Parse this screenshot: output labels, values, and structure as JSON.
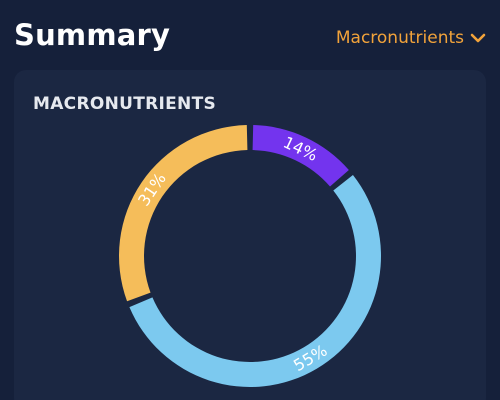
{
  "header": {
    "title": "Summary",
    "dropdown_label": "Macronutrients",
    "dropdown_icon": "chevron-down-icon"
  },
  "card": {
    "title": "MACRONUTRIENTS"
  },
  "colors": {
    "background": "#15203a",
    "card": "#1b2742",
    "accent": "#f2a33a"
  },
  "chart_data": {
    "type": "pie",
    "categories": [
      "",
      "",
      ""
    ],
    "values": [
      14,
      55,
      31
    ],
    "labels": [
      "14%",
      "55%",
      "31%"
    ],
    "colors": [
      "#7334ee",
      "#7cc9ef",
      "#f5bd5a"
    ]
  }
}
